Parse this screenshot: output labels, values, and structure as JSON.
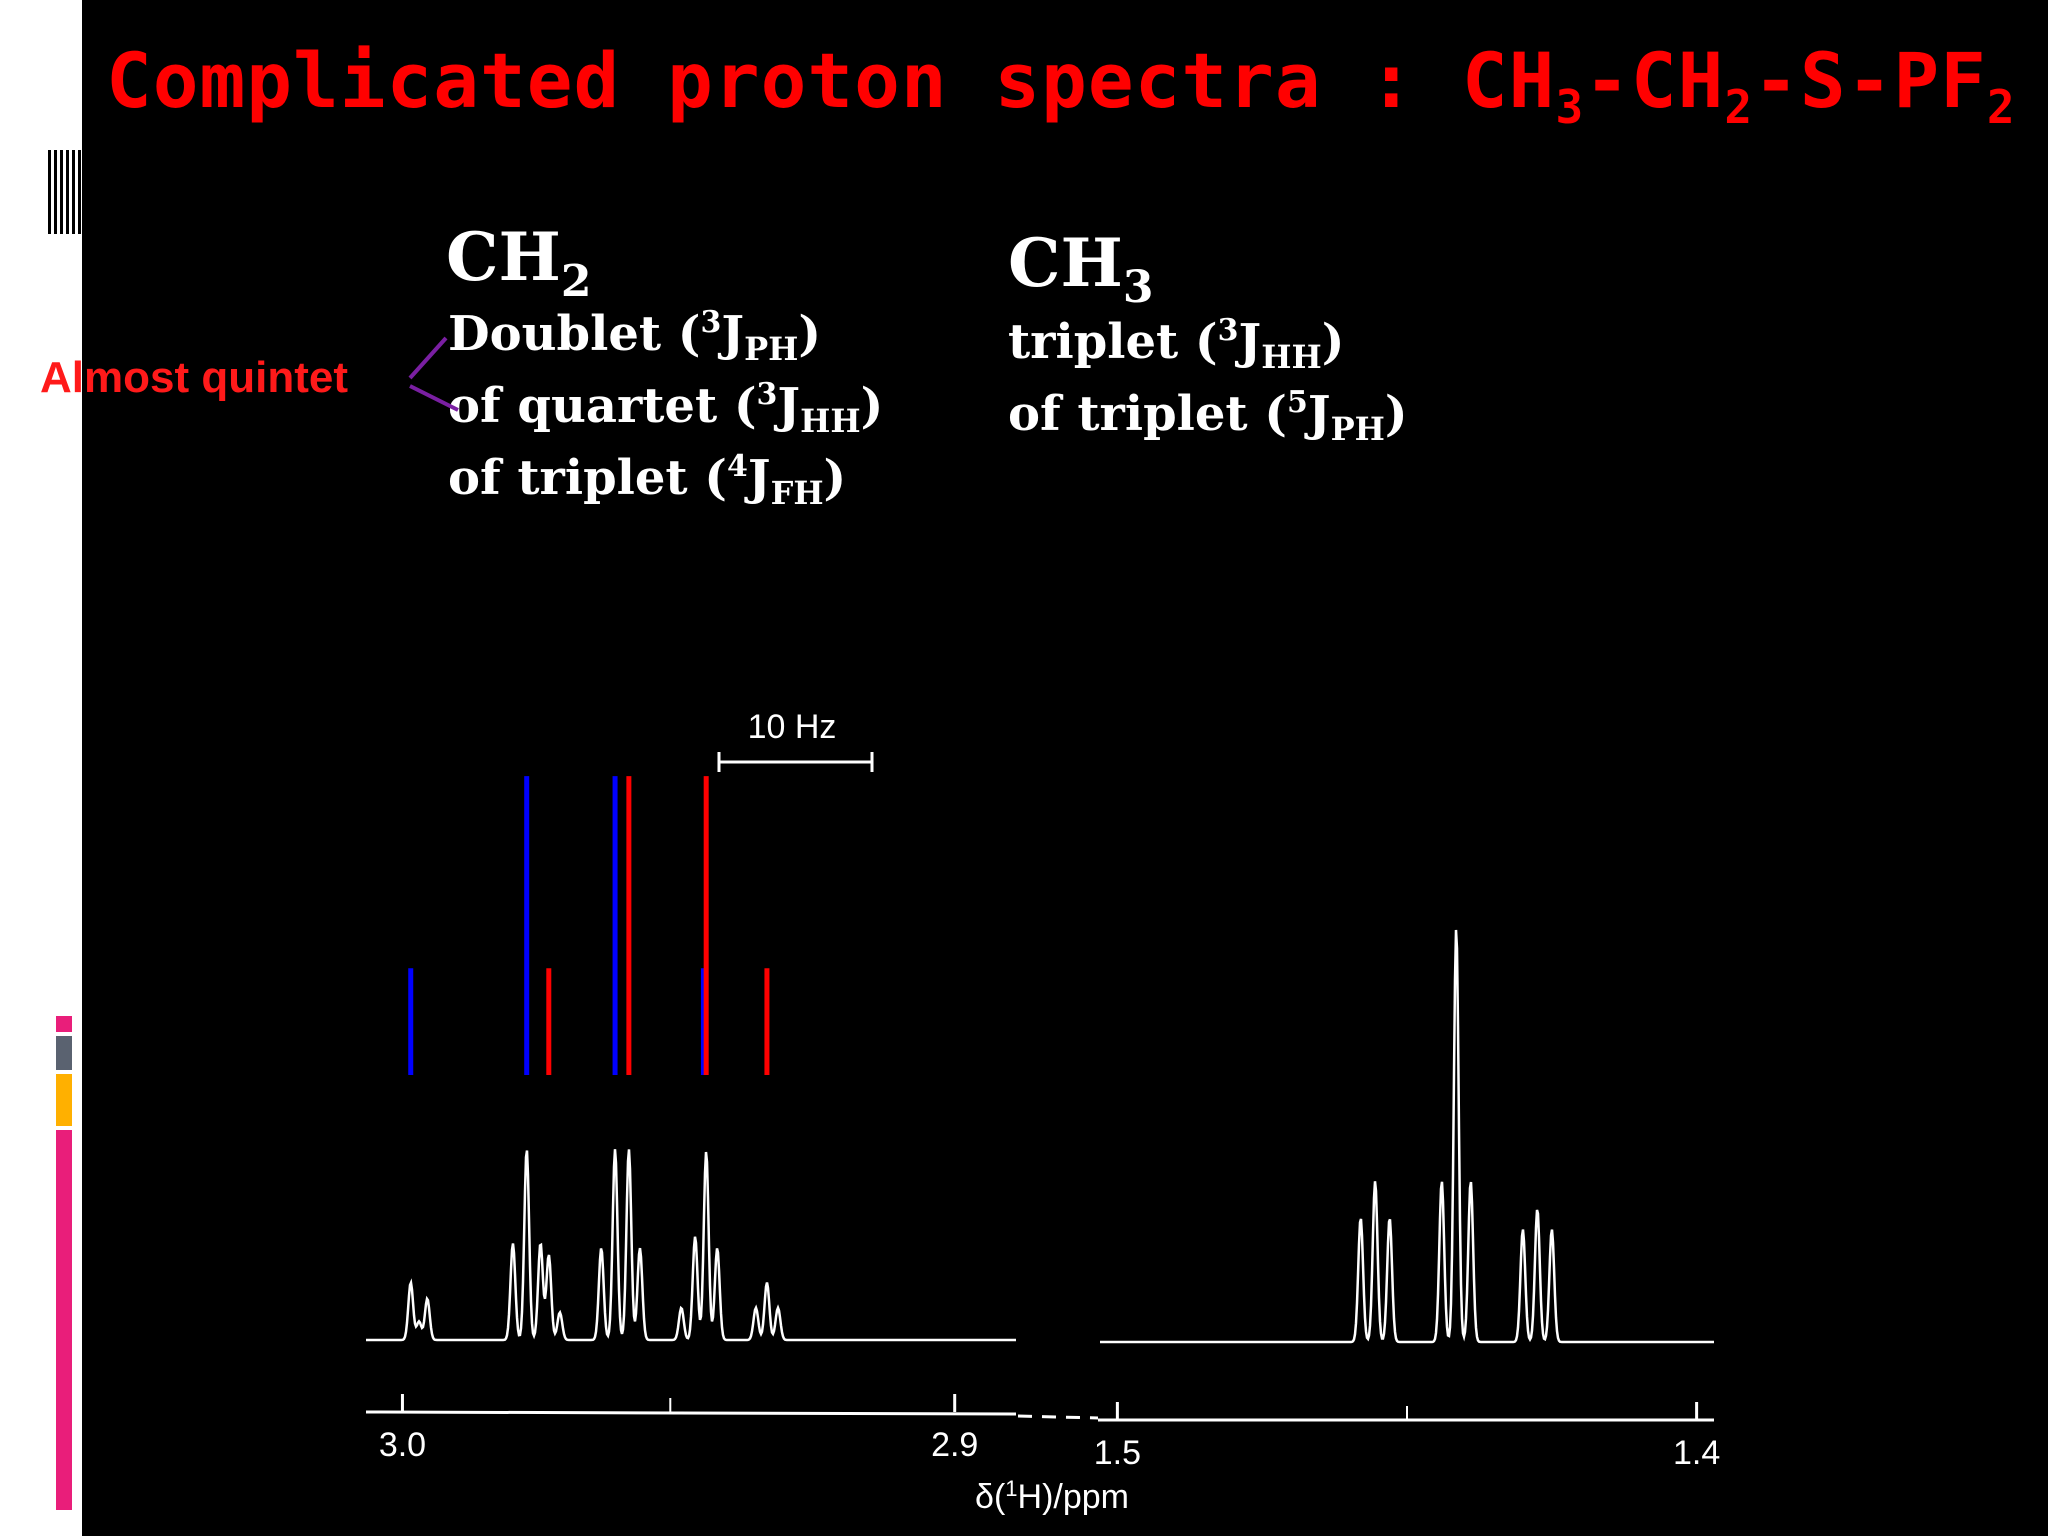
{
  "slide": {
    "title": "Complicated proton spectra : CH3-CH2-S-PF2",
    "title_parts": {
      "prefix": "Complicated proton spectra : CH",
      "sub1": "3",
      "mid1": "-CH",
      "sub2": "2",
      "mid2": "-S-PF",
      "sub3": "2"
    },
    "annotation": "Almost quintet",
    "colors": {
      "title": "#ff0000",
      "annotation": "#ff1a1a",
      "connector": "#7a1fa2",
      "stick_blue": "#0000ff",
      "stick_red": "#ff0000",
      "trace": "#ffffff",
      "background": "#000000",
      "accent_pink": "#e91e7a",
      "accent_orange": "#ffb000",
      "accent_gray": "#5a6270"
    }
  },
  "labels": {
    "ch2": {
      "group": "CH",
      "group_sub": "2",
      "line1": {
        "pre": "Doublet (",
        "sup": "3",
        "j": "J",
        "sub": "PH",
        "post": ")"
      },
      "line2": {
        "pre": "of quartet (",
        "sup": "3",
        "j": "J",
        "sub": "HH",
        "post": ")"
      },
      "line3": {
        "pre": "of triplet (",
        "sup": "4",
        "j": "J",
        "sub": "FH",
        "post": ")"
      }
    },
    "ch3": {
      "group": "CH",
      "group_sub": "3",
      "line1": {
        "pre": "triplet (",
        "sup": "3",
        "j": "J",
        "sub": "HH",
        "post": ")"
      },
      "line2": {
        "pre": "of triplet (",
        "sup": "5",
        "j": "J",
        "sub": "PH",
        "post": ")"
      }
    }
  },
  "chart_data": {
    "type": "line",
    "title": "Complicated proton spectra : CH3-CH2-S-PF2",
    "xlabel": "δ(1H)/ppm",
    "xlabel_parts": {
      "pre": "δ(",
      "sup": "1",
      "post": "H)/ppm"
    },
    "ylabel": "",
    "scale_bar": "10 Hz",
    "segments": [
      {
        "name": "CH2",
        "xlim": [
          3.0066,
          2.8889
        ],
        "ticks": [
          {
            "value": 3.0,
            "label": "3.0"
          },
          {
            "value": 2.9,
            "label": "2.9"
          }
        ],
        "minor_ticks": [
          2.9515
        ],
        "peaks": [
          {
            "ppm": 2.9985,
            "height": 0.25
          },
          {
            "ppm": 2.997,
            "height": 0.08
          },
          {
            "ppm": 2.9955,
            "height": 0.18
          },
          {
            "ppm": 2.98,
            "height": 0.42
          },
          {
            "ppm": 2.9775,
            "height": 0.83
          },
          {
            "ppm": 2.975,
            "height": 0.42
          },
          {
            "ppm": 2.9735,
            "height": 0.37
          },
          {
            "ppm": 2.9715,
            "height": 0.12
          },
          {
            "ppm": 2.964,
            "height": 0.4
          },
          {
            "ppm": 2.9615,
            "height": 0.83
          },
          {
            "ppm": 2.959,
            "height": 0.83
          },
          {
            "ppm": 2.957,
            "height": 0.4
          },
          {
            "ppm": 2.9495,
            "height": 0.14
          },
          {
            "ppm": 2.947,
            "height": 0.45
          },
          {
            "ppm": 2.945,
            "height": 0.82
          },
          {
            "ppm": 2.943,
            "height": 0.4
          },
          {
            "ppm": 2.936,
            "height": 0.14
          },
          {
            "ppm": 2.934,
            "height": 0.25
          },
          {
            "ppm": 2.932,
            "height": 0.14
          }
        ],
        "sticks": [
          {
            "ppm": 2.9985,
            "height": 0.35,
            "color": "blue"
          },
          {
            "ppm": 2.9775,
            "height": 0.98,
            "color": "blue"
          },
          {
            "ppm": 2.9735,
            "height": 0.35,
            "color": "red"
          },
          {
            "ppm": 2.9615,
            "height": 0.98,
            "color": "blue"
          },
          {
            "ppm": 2.959,
            "height": 0.98,
            "color": "red"
          },
          {
            "ppm": 2.9455,
            "height": 0.35,
            "color": "blue"
          },
          {
            "ppm": 2.945,
            "height": 0.98,
            "color": "red"
          },
          {
            "ppm": 2.934,
            "height": 0.35,
            "color": "red"
          }
        ]
      },
      {
        "name": "CH3",
        "xlim": [
          1.503,
          1.397
        ],
        "ticks": [
          {
            "value": 1.5,
            "label": "1.5"
          },
          {
            "value": 1.4,
            "label": "1.4"
          }
        ],
        "minor_ticks": [
          1.45
        ],
        "peaks": [
          {
            "ppm": 1.458,
            "height": 0.54
          },
          {
            "ppm": 1.4555,
            "height": 0.7
          },
          {
            "ppm": 1.453,
            "height": 0.54
          },
          {
            "ppm": 1.444,
            "height": 0.7
          },
          {
            "ppm": 1.4415,
            "height": 1.8
          },
          {
            "ppm": 1.439,
            "height": 0.7
          },
          {
            "ppm": 1.43,
            "height": 0.49
          },
          {
            "ppm": 1.4275,
            "height": 0.58
          },
          {
            "ppm": 1.425,
            "height": 0.49
          }
        ]
      }
    ],
    "grid": false
  }
}
